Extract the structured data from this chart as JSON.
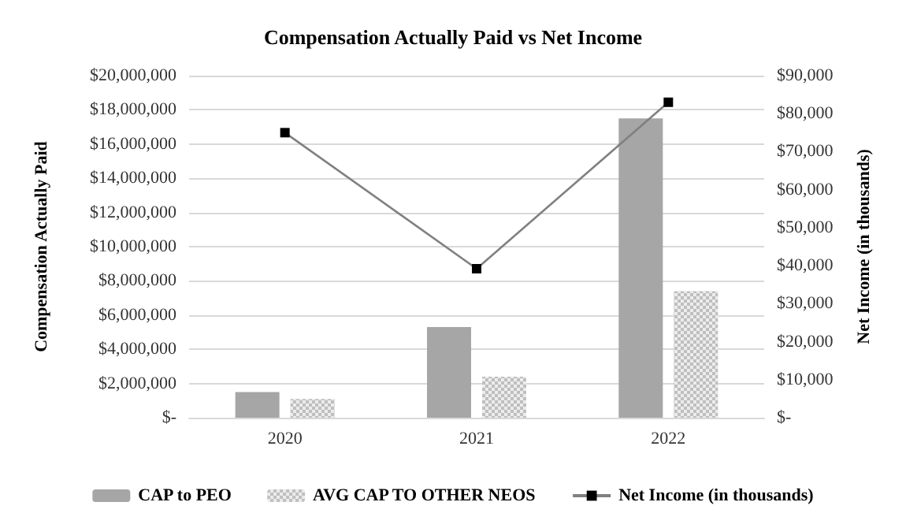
{
  "chart_data": {
    "type": "bar",
    "title": "Compensation Actually Paid vs Net Income",
    "ylabel": "Compensation Actually Paid",
    "y2label": "Net Income (in thousands)",
    "categories": [
      "2020",
      "2021",
      "2022"
    ],
    "series": [
      {
        "name": "CAP to PEO",
        "color": "#a6a6a6",
        "values": [
          1500000,
          5300000,
          17500000
        ]
      },
      {
        "name": "AVG CAP TO OTHER NEOS",
        "color": "#bfbfbf",
        "values": [
          1100000,
          2400000,
          7400000
        ]
      },
      {
        "name": "Net Income (in thousands)",
        "type": "line",
        "axis": "y2",
        "color": "#808080",
        "marker": "square",
        "values": [
          75000,
          39200,
          83000
        ]
      }
    ],
    "ylim": [
      0,
      20000000
    ],
    "yticks": [
      {
        "value": 0,
        "label": "$-"
      },
      {
        "value": 2000000,
        "label": "$2,000,000"
      },
      {
        "value": 4000000,
        "label": "$4,000,000"
      },
      {
        "value": 6000000,
        "label": "$6,000,000"
      },
      {
        "value": 8000000,
        "label": "$8,000,000"
      },
      {
        "value": 10000000,
        "label": "$10,000,000"
      },
      {
        "value": 12000000,
        "label": "$12,000,000"
      },
      {
        "value": 14000000,
        "label": "$14,000,000"
      },
      {
        "value": 16000000,
        "label": "$16,000,000"
      },
      {
        "value": 18000000,
        "label": "$18,000,000"
      },
      {
        "value": 20000000,
        "label": "$20,000,000"
      }
    ],
    "y2lim": [
      0,
      90000
    ],
    "y2ticks": [
      {
        "value": 0,
        "label": "$-"
      },
      {
        "value": 10000,
        "label": "$10,000"
      },
      {
        "value": 20000,
        "label": "$20,000"
      },
      {
        "value": 30000,
        "label": "$30,000"
      },
      {
        "value": 40000,
        "label": "$40,000"
      },
      {
        "value": 50000,
        "label": "$50,000"
      },
      {
        "value": 60000,
        "label": "$60,000"
      },
      {
        "value": 70000,
        "label": "$70,000"
      },
      {
        "value": 80000,
        "label": "$80,000"
      },
      {
        "value": 90000,
        "label": "$90,000"
      }
    ],
    "grid": "y",
    "legend": "bottom"
  }
}
